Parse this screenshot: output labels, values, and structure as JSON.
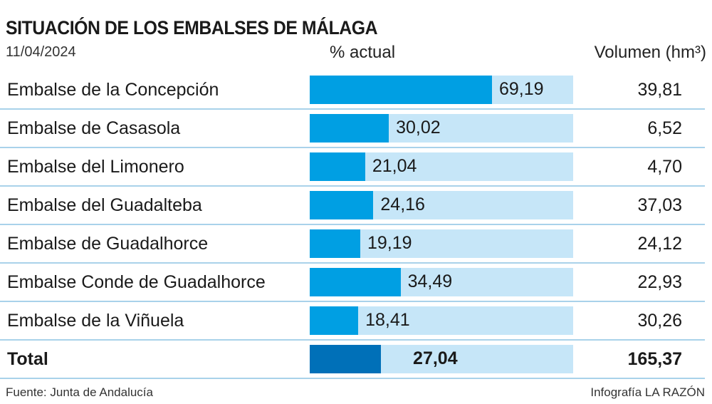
{
  "header": {
    "title": "SITUACIÓN DE LOS EMBALSES DE MÁLAGA",
    "date": "11/04/2024",
    "pct_header": "% actual",
    "vol_header": "Volumen (hm³)"
  },
  "footer": {
    "source": "Fuente: Junta de Andalucía",
    "credit": "Infografía LA RAZÓN"
  },
  "colors": {
    "bar": "#009fe3",
    "bar_total": "#0070b8",
    "track": "#c6e6f8",
    "separator": "#a9d2ea"
  },
  "chart_data": {
    "type": "bar",
    "orientation": "horizontal",
    "xlim": [
      0,
      100
    ],
    "categories": [
      "Embalse de la Concepción",
      "Embalse de Casasola",
      "Embalse del Limonero",
      "Embalse del Guadalteba",
      "Embalse de Guadalhorce",
      "Embalse Conde de Guadalhorce",
      "Embalse de la Viñuela",
      "Total"
    ],
    "values": [
      69.19,
      30.02,
      21.04,
      24.16,
      19.19,
      34.49,
      18.41,
      27.04
    ],
    "value_labels": [
      "69,19",
      "30,02",
      "21,04",
      "24,16",
      "19,19",
      "34,49",
      "18,41",
      "27,04"
    ],
    "volumes": [
      "39,81",
      "6,52",
      "4,70",
      "37,03",
      "24,12",
      "22,93",
      "30,26",
      "165,37"
    ]
  }
}
